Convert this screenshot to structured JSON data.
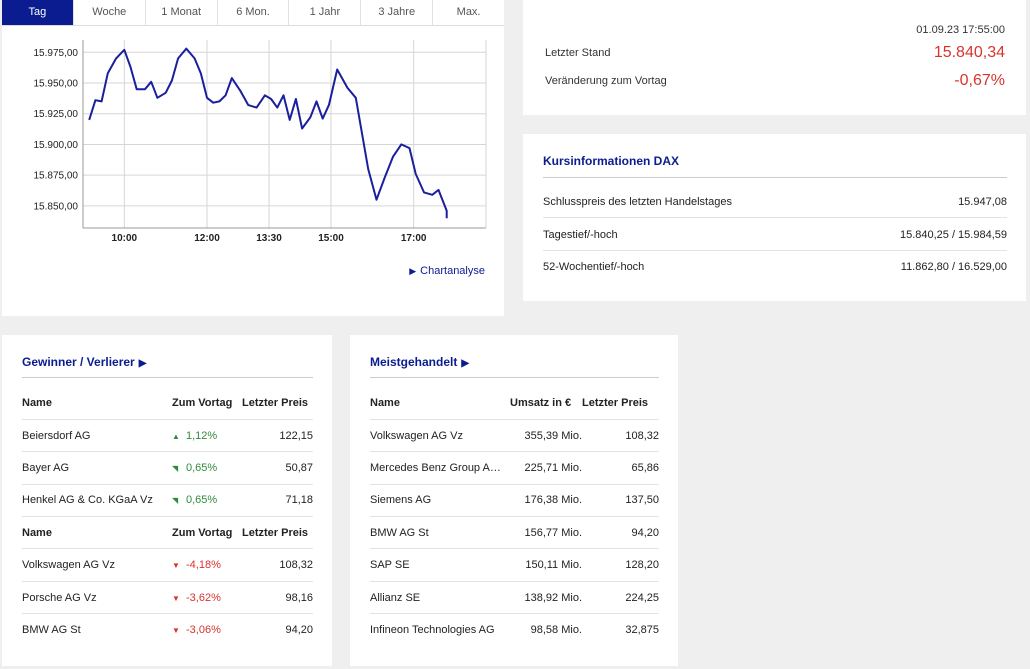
{
  "chart": {
    "tabs": [
      "Tag",
      "Woche",
      "1 Monat",
      "6 Mon.",
      "1 Jahr",
      "3 Jahre",
      "Max."
    ],
    "active_tab": 0,
    "link_label": "Chartanalyse",
    "accent": "#0a1c8f",
    "line_color": "#1a1f9c"
  },
  "chart_data": {
    "type": "line",
    "y_ticks": [
      "15.975,00",
      "15.950,00",
      "15.925,00",
      "15.900,00",
      "15.875,00",
      "15.850,00"
    ],
    "y_tick_values": [
      15975,
      15950,
      15925,
      15900,
      15875,
      15850
    ],
    "ylim": [
      15832,
      15985
    ],
    "x_ticks": [
      "10:00",
      "12:00",
      "13:30",
      "15:00",
      "17:00"
    ],
    "x_tick_times": [
      10.0,
      12.0,
      13.5,
      15.0,
      17.0
    ],
    "xlim": [
      9.0,
      18.75
    ],
    "grid": true,
    "series": [
      {
        "x": [
          9.15,
          9.3,
          9.45,
          9.6,
          9.8,
          10.0,
          10.15,
          10.3,
          10.5,
          10.65,
          10.8,
          11.0,
          11.15,
          11.3,
          11.5,
          11.7,
          11.85,
          12.0,
          12.15,
          12.3,
          12.45,
          12.6,
          12.8,
          13.0,
          13.2,
          13.4,
          13.55,
          13.7,
          13.85,
          14.0,
          14.15,
          14.3,
          14.5,
          14.65,
          14.8,
          14.95,
          15.15,
          15.4,
          15.6,
          15.9,
          16.1,
          16.3,
          16.5,
          16.7,
          16.9,
          17.05,
          17.25,
          17.45,
          17.6,
          17.8
        ],
        "values": [
          15920,
          15936,
          15935,
          15958,
          15970,
          15977,
          15963,
          15945,
          15945,
          15951,
          15938,
          15942,
          15952,
          15970,
          15978,
          15970,
          15958,
          15938,
          15934,
          15935,
          15940,
          15954,
          15944,
          15932,
          15930,
          15940,
          15937,
          15930,
          15940,
          15920,
          15937,
          15913,
          15922,
          15935,
          15921,
          15932,
          15961,
          15946,
          15938,
          15880,
          15855,
          15873,
          15890,
          15900,
          15897,
          15876,
          15861,
          15859,
          15863,
          15846
        ]
      }
    ],
    "last_point": [
      17.8,
      15840
    ]
  },
  "quote": {
    "timestamp": "01.09.23 17:55:00",
    "last_label": "Letzter Stand",
    "last_value": "15.840,34",
    "change_label": "Veränderung zum Vortag",
    "change_value": "-0,67%",
    "value_color": "#d9332c"
  },
  "info": {
    "title": "Kursinformationen DAX",
    "rows": [
      {
        "label": "Schlusspreis des letzten Handelstages",
        "value": "15.947,08"
      },
      {
        "label": "Tagestief/-hoch",
        "value": "15.840,25 / 15.984,59"
      },
      {
        "label": "52-Wochentief/-hoch",
        "value": "11.862,80 / 16.529,00"
      }
    ]
  },
  "gainers_losers": {
    "title": "Gewinner / Verlierer",
    "headers": [
      "Name",
      "Zum Vortag",
      "Letzter Preis"
    ],
    "gainers": [
      {
        "name": "Beiersdorf AG",
        "change": "1,12%",
        "price": "122,15",
        "arrow": "▲"
      },
      {
        "name": "Bayer AG",
        "change": "0,65%",
        "price": "50,87",
        "arrow": "◥"
      },
      {
        "name": "Henkel AG & Co. KGaA Vz",
        "change": "0,65%",
        "price": "71,18",
        "arrow": "◥"
      }
    ],
    "losers": [
      {
        "name": "Volkswagen AG Vz",
        "change": "-4,18%",
        "price": "108,32",
        "arrow": "▼"
      },
      {
        "name": "Porsche AG Vz",
        "change": "-3,62%",
        "price": "98,16",
        "arrow": "▼"
      },
      {
        "name": "BMW AG St",
        "change": "-3,06%",
        "price": "94,20",
        "arrow": "▼"
      }
    ],
    "positive_color": "#2f8b3b",
    "negative_color": "#d9332c"
  },
  "most_traded": {
    "title": "Meistgehandelt",
    "headers": [
      "Name",
      "Umsatz in €",
      "Letzter Preis"
    ],
    "rows": [
      {
        "name": "Volkswagen AG Vz",
        "volume": "355,39 Mio.",
        "price": "108,32"
      },
      {
        "name": "Mercedes Benz Group AG ...",
        "volume": "225,71 Mio.",
        "price": "65,86"
      },
      {
        "name": "Siemens AG",
        "volume": "176,38 Mio.",
        "price": "137,50"
      },
      {
        "name": "BMW AG St",
        "volume": "156,77 Mio.",
        "price": "94,20"
      },
      {
        "name": "SAP SE",
        "volume": "150,11 Mio.",
        "price": "128,20"
      },
      {
        "name": "Allianz SE",
        "volume": "138,92 Mio.",
        "price": "224,25"
      },
      {
        "name": "Infineon Technologies AG",
        "volume": "98,58 Mio.",
        "price": "32,875"
      }
    ]
  }
}
